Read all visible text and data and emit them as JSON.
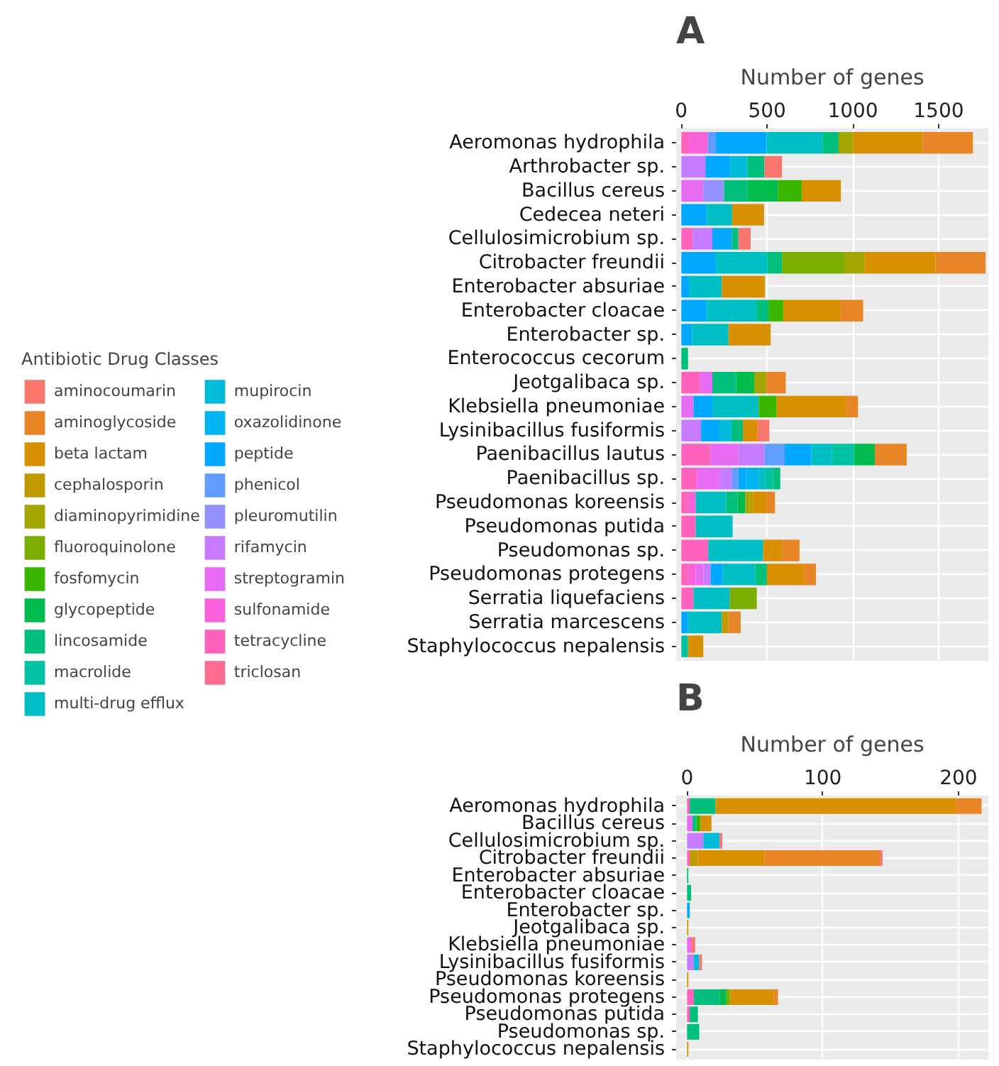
{
  "chart_data": [
    {
      "type": "bar",
      "orientation": "horizontal",
      "stacked": true,
      "title": "A",
      "xlabel": "Number of genes",
      "legend_title": "Antibiotic Drug Classes",
      "legend": "left",
      "grid": true,
      "xlim": [
        -30,
        1790
      ],
      "xticks": [
        0,
        500,
        1000,
        1500
      ],
      "categories": [
        "Aeromonas hydrophila",
        "Arthrobacter sp.",
        "Bacillus cereus",
        "Cedecea neteri",
        "Cellulosimicrobium sp.",
        "Citrobacter freundii",
        "Enterobacter absuriae",
        "Enterobacter cloacae",
        "Enterobacter sp.",
        "Enterococcus cecorum",
        "Jeotgalibaca sp.",
        "Klebsiella pneumoniae",
        "Lysinibacillus fusiformis",
        "Paenibacillus lautus",
        "Paenibacillus sp.",
        "Pseudomonas koreensis",
        "Pseudomonas putida",
        "Pseudomonas sp.",
        "Pseudomonas protegens",
        "Serratia liquefaciens",
        "Serratia marcescens",
        "Staphylococcus nepalensis"
      ],
      "series": [
        {
          "name": "triclosan",
          "color": "#ff6c91",
          "values": [
            0,
            0,
            0,
            0,
            0,
            0,
            0,
            0,
            0,
            0,
            0,
            0,
            0,
            0,
            0,
            0,
            0,
            0,
            0,
            0,
            0,
            0
          ]
        },
        {
          "name": "tetracycline",
          "color": "#ff62bc",
          "values": [
            45,
            0,
            0,
            0,
            66,
            0,
            0,
            0,
            0,
            0,
            110,
            0,
            0,
            168,
            89,
            39,
            84,
            157,
            39,
            71,
            0,
            0
          ]
        },
        {
          "name": "sulfonamide",
          "color": "#fa62db",
          "values": [
            110,
            0,
            0,
            0,
            0,
            0,
            0,
            0,
            0,
            0,
            0,
            0,
            0,
            0,
            0,
            45,
            0,
            0,
            45,
            0,
            0,
            0
          ]
        },
        {
          "name": "streptogramin",
          "color": "#e76bf3",
          "values": [
            0,
            0,
            128,
            0,
            0,
            0,
            0,
            0,
            0,
            0,
            71,
            71,
            0,
            165,
            134,
            0,
            0,
            0,
            45,
            0,
            0,
            0
          ]
        },
        {
          "name": "rifamycin",
          "color": "#c77cff",
          "values": [
            0,
            141,
            0,
            0,
            115,
            0,
            0,
            0,
            0,
            0,
            0,
            0,
            115,
            152,
            71,
            0,
            0,
            0,
            42,
            0,
            0,
            0
          ]
        },
        {
          "name": "pleuromutilin",
          "color": "#9590ff",
          "values": [
            0,
            0,
            121,
            0,
            0,
            0,
            0,
            0,
            0,
            0,
            0,
            0,
            0,
            0,
            0,
            0,
            0,
            0,
            0,
            0,
            0,
            0
          ]
        },
        {
          "name": "phenicol",
          "color": "#619cff",
          "values": [
            47,
            0,
            0,
            0,
            0,
            0,
            0,
            0,
            0,
            0,
            0,
            0,
            0,
            118,
            39,
            0,
            0,
            0,
            0,
            0,
            0,
            0
          ]
        },
        {
          "name": "peptide",
          "color": "#00a9ff",
          "values": [
            296,
            144,
            0,
            149,
            113,
            202,
            45,
            149,
            63,
            0,
            0,
            110,
            107,
            155,
            45,
            0,
            0,
            0,
            71,
            0,
            39,
            0
          ]
        },
        {
          "name": "oxazolidinone",
          "color": "#00b4ef",
          "values": [
            0,
            0,
            0,
            0,
            0,
            0,
            0,
            0,
            0,
            0,
            0,
            0,
            0,
            0,
            73,
            0,
            0,
            0,
            0,
            0,
            0,
            0
          ]
        },
        {
          "name": "mupirocin",
          "color": "#00bcd8",
          "values": [
            0,
            100,
            0,
            0,
            0,
            0,
            0,
            0,
            0,
            0,
            0,
            0,
            71,
            0,
            0,
            0,
            0,
            0,
            0,
            0,
            0,
            0
          ]
        },
        {
          "name": "multi-drug efflux",
          "color": "#00bfc4",
          "values": [
            325,
            0,
            0,
            147,
            0,
            301,
            191,
            288,
            212,
            0,
            0,
            270,
            0,
            121,
            39,
            178,
            215,
            320,
            189,
            212,
            197,
            0
          ]
        },
        {
          "name": "macrolide",
          "color": "#00c1a3",
          "values": [
            0,
            0,
            0,
            0,
            0,
            0,
            0,
            0,
            0,
            0,
            0,
            0,
            0,
            128,
            45,
            0,
            0,
            0,
            0,
            0,
            0,
            39
          ]
        },
        {
          "name": "lincosamide",
          "color": "#00bf7d",
          "values": [
            94,
            100,
            136,
            0,
            39,
            84,
            0,
            71,
            0,
            39,
            139,
            0,
            66,
            0,
            42,
            66,
            0,
            0,
            68,
            0,
            0,
            0
          ]
        },
        {
          "name": "glycopeptide",
          "color": "#00bb4e",
          "values": [
            0,
            0,
            178,
            0,
            0,
            0,
            0,
            0,
            0,
            0,
            105,
            0,
            0,
            121,
            0,
            45,
            0,
            0,
            0,
            0,
            0,
            0
          ]
        },
        {
          "name": "fosfomycin",
          "color": "#39b600",
          "values": [
            0,
            0,
            139,
            0,
            0,
            0,
            0,
            86,
            0,
            0,
            0,
            105,
            0,
            0,
            0,
            0,
            0,
            0,
            0,
            0,
            0,
            0
          ]
        },
        {
          "name": "fluoroquinolone",
          "color": "#7cae00",
          "values": [
            0,
            0,
            0,
            0,
            0,
            367,
            0,
            0,
            0,
            0,
            0,
            0,
            0,
            0,
            0,
            0,
            0,
            0,
            0,
            157,
            0,
            0
          ]
        },
        {
          "name": "diaminopyrimidine",
          "color": "#a3a500",
          "values": [
            84,
            0,
            0,
            0,
            0,
            113,
            0,
            0,
            0,
            0,
            71,
            0,
            0,
            0,
            0,
            26,
            0,
            0,
            0,
            0,
            0,
            0
          ]
        },
        {
          "name": "cephalosporin",
          "color": "#c09b00",
          "values": [
            0,
            0,
            0,
            0,
            0,
            0,
            0,
            0,
            0,
            0,
            0,
            0,
            0,
            0,
            0,
            21,
            0,
            0,
            0,
            0,
            39,
            0
          ]
        },
        {
          "name": "beta lactam",
          "color": "#d89000",
          "values": [
            406,
            0,
            228,
            186,
            0,
            414,
            252,
            335,
            246,
            0,
            0,
            406,
            86,
            0,
            0,
            79,
            0,
            110,
            215,
            0,
            0,
            89
          ]
        },
        {
          "name": "aminoglycoside",
          "color": "#e88526",
          "values": [
            293,
            0,
            0,
            0,
            0,
            293,
            0,
            131,
            0,
            0,
            113,
            68,
            0,
            186,
            0,
            47,
            0,
            102,
            71,
            0,
            71,
            0
          ]
        },
        {
          "name": "aminocoumarin",
          "color": "#f8766d",
          "values": [
            0,
            102,
            0,
            0,
            71,
            0,
            0,
            0,
            0,
            0,
            0,
            0,
            68,
            0,
            0,
            0,
            0,
            0,
            0,
            0,
            0,
            0
          ]
        }
      ]
    },
    {
      "type": "bar",
      "orientation": "horizontal",
      "stacked": true,
      "title": "B",
      "xlabel": "Number of genes",
      "grid": true,
      "xlim": [
        -8,
        222
      ],
      "xticks": [
        0,
        100,
        200
      ],
      "categories": [
        "Aeromonas hydrophila",
        "Bacillus cereus",
        "Cellulosimicrobium sp.",
        "Citrobacter freundii",
        "Enterobacter absuriae",
        "Enterobacter cloacae",
        "Enterobacter sp.",
        "Jeotgalibaca sp.",
        "Klebsiella pneumoniae",
        "Lysinibacillus fusiformis",
        "Pseudomonas koreensis",
        "Pseudomonas protegens",
        "Pseudomonas putida",
        "Pseudomonas sp.",
        "Staphylococcus nepalensis"
      ],
      "series": [
        {
          "color": "#ff62bc",
          "values": [
            2,
            0,
            0,
            2,
            0,
            0,
            0,
            0,
            0,
            0,
            0,
            5,
            2,
            0,
            0
          ]
        },
        {
          "color": "#e76bf3",
          "values": [
            0,
            4,
            0,
            0,
            0,
            0,
            0,
            0,
            3,
            0,
            0,
            0,
            0,
            0,
            0
          ]
        },
        {
          "color": "#c77cff",
          "values": [
            0,
            0,
            12,
            0,
            0,
            0,
            0,
            0,
            0,
            5,
            0,
            0,
            0,
            0,
            0
          ]
        },
        {
          "color": "#00a9ff",
          "values": [
            0,
            0,
            0,
            0,
            0,
            0,
            2,
            0,
            0,
            0,
            0,
            0,
            0,
            0,
            0
          ]
        },
        {
          "color": "#00bcd8",
          "values": [
            0,
            0,
            12,
            0,
            0,
            0,
            0,
            0,
            0,
            4,
            0,
            0,
            0,
            0,
            0
          ]
        },
        {
          "color": "#00bf7d",
          "values": [
            19,
            3,
            0,
            0,
            1,
            3,
            0,
            0,
            0,
            0,
            0,
            19,
            6,
            9,
            0
          ]
        },
        {
          "color": "#00bb4e",
          "values": [
            0,
            0,
            0,
            0,
            0,
            0,
            0,
            0,
            0,
            0,
            0,
            5,
            0,
            0,
            0
          ]
        },
        {
          "color": "#39b600",
          "values": [
            0,
            3,
            0,
            0,
            0,
            0,
            0,
            0,
            0,
            0,
            0,
            0,
            0,
            0,
            0
          ]
        },
        {
          "color": "#7cae00",
          "values": [
            0,
            0,
            0,
            0,
            0,
            0,
            0,
            0,
            0,
            0,
            0,
            3,
            0,
            0,
            0
          ]
        },
        {
          "color": "#c09b00",
          "values": [
            0,
            0,
            0,
            6,
            0,
            0,
            0,
            1,
            0,
            0,
            1,
            0,
            0,
            0,
            1
          ]
        },
        {
          "color": "#d89000",
          "values": [
            177,
            8,
            0,
            49,
            0,
            0,
            0,
            0,
            0,
            0,
            0,
            32,
            0,
            0,
            0
          ]
        },
        {
          "color": "#e88526",
          "values": [
            19,
            0,
            0,
            85,
            0,
            0,
            0,
            0,
            0,
            0,
            0,
            3,
            0,
            0,
            0
          ]
        },
        {
          "color": "#f8766d",
          "values": [
            0,
            0,
            2,
            2,
            0,
            0,
            0,
            0,
            3,
            2,
            0,
            0,
            0,
            0,
            0
          ]
        }
      ]
    }
  ]
}
